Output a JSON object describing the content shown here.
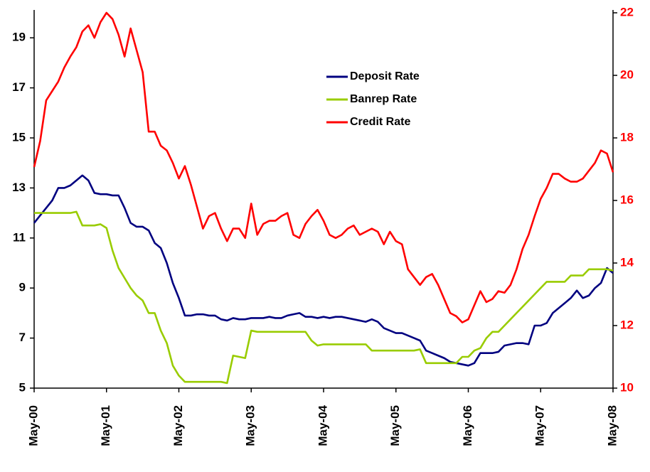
{
  "chart_data": {
    "type": "line",
    "categories": [
      "May-00",
      null,
      null,
      null,
      null,
      null,
      null,
      null,
      null,
      null,
      null,
      null,
      "May-01",
      null,
      null,
      null,
      null,
      null,
      null,
      null,
      null,
      null,
      null,
      null,
      "May-02",
      null,
      null,
      null,
      null,
      null,
      null,
      null,
      null,
      null,
      null,
      null,
      "May-03",
      null,
      null,
      null,
      null,
      null,
      null,
      null,
      null,
      null,
      null,
      null,
      "May-04",
      null,
      null,
      null,
      null,
      null,
      null,
      null,
      null,
      null,
      null,
      null,
      "May-05",
      null,
      null,
      null,
      null,
      null,
      null,
      null,
      null,
      null,
      null,
      null,
      "May-06",
      null,
      null,
      null,
      null,
      null,
      null,
      null,
      null,
      null,
      null,
      null,
      "May-07",
      null,
      null,
      null,
      null,
      null,
      null,
      null,
      null,
      null,
      null,
      null,
      "May-08"
    ],
    "series": [
      {
        "name": "Deposit Rate",
        "color": "#000080",
        "axis": "y",
        "values": [
          11.6,
          11.9,
          12.2,
          12.5,
          13.0,
          13.0,
          13.1,
          13.3,
          13.5,
          13.3,
          12.8,
          12.75,
          12.75,
          12.7,
          12.7,
          12.2,
          11.6,
          11.45,
          11.45,
          11.3,
          10.8,
          10.6,
          10.0,
          9.2,
          8.6,
          7.9,
          7.9,
          7.95,
          7.95,
          7.9,
          7.9,
          7.75,
          7.7,
          7.8,
          7.75,
          7.75,
          7.8,
          7.8,
          7.8,
          7.85,
          7.8,
          7.8,
          7.9,
          7.95,
          8.0,
          7.85,
          7.85,
          7.8,
          7.85,
          7.8,
          7.85,
          7.85,
          7.8,
          7.75,
          7.7,
          7.65,
          7.75,
          7.65,
          7.4,
          7.3,
          7.2,
          7.2,
          7.1,
          7.0,
          6.9,
          6.5,
          6.4,
          6.3,
          6.2,
          6.05,
          6.0,
          5.95,
          5.9,
          6.0,
          6.4,
          6.4,
          6.4,
          6.45,
          6.7,
          6.75,
          6.8,
          6.8,
          6.75,
          7.5,
          7.5,
          7.6,
          8.0,
          8.2,
          8.4,
          8.6,
          8.9,
          8.6,
          8.7,
          9.0,
          9.2,
          9.8,
          9.6
        ]
      },
      {
        "name": "Banrep Rate",
        "color": "#99cc00",
        "axis": "y",
        "values": [
          12,
          12,
          12,
          12,
          12,
          12,
          12,
          12.05,
          11.5,
          11.5,
          11.5,
          11.55,
          11.4,
          10.5,
          9.8,
          9.4,
          9.0,
          8.7,
          8.5,
          8.0,
          8.0,
          7.3,
          6.8,
          5.9,
          5.5,
          5.25,
          5.25,
          5.25,
          5.25,
          5.25,
          5.25,
          5.25,
          5.2,
          6.3,
          6.25,
          6.2,
          7.3,
          7.25,
          7.25,
          7.25,
          7.25,
          7.25,
          7.25,
          7.25,
          7.25,
          7.25,
          6.9,
          6.7,
          6.75,
          6.75,
          6.75,
          6.75,
          6.75,
          6.75,
          6.75,
          6.75,
          6.5,
          6.5,
          6.5,
          6.5,
          6.5,
          6.5,
          6.5,
          6.5,
          6.55,
          6.0,
          6.0,
          6.0,
          6.0,
          6.0,
          6.0,
          6.25,
          6.25,
          6.5,
          6.6,
          7.0,
          7.25,
          7.25,
          7.5,
          7.75,
          8.0,
          8.25,
          8.5,
          8.75,
          9.0,
          9.25,
          9.25,
          9.25,
          9.25,
          9.5,
          9.5,
          9.5,
          9.75,
          9.75,
          9.75,
          9.75,
          9.7
        ]
      },
      {
        "name": "Credit Rate",
        "color": "#ff0000",
        "axis": "y2",
        "values": [
          17.07,
          17.9,
          19.2,
          19.5,
          19.8,
          20.25,
          20.6,
          20.9,
          21.4,
          21.6,
          21.2,
          21.7,
          22.0,
          21.8,
          21.3,
          20.6,
          21.5,
          20.8,
          20.1,
          18.2,
          18.2,
          17.75,
          17.6,
          17.2,
          16.7,
          17.1,
          16.5,
          15.8,
          15.1,
          15.5,
          15.6,
          15.1,
          14.7,
          15.1,
          15.1,
          14.8,
          15.9,
          14.9,
          15.25,
          15.35,
          15.35,
          15.5,
          15.6,
          14.9,
          14.8,
          15.25,
          15.5,
          15.7,
          15.35,
          14.9,
          14.8,
          14.9,
          15.1,
          15.2,
          14.9,
          15.0,
          15.1,
          15.0,
          14.6,
          15.0,
          14.7,
          14.6,
          13.8,
          13.55,
          13.3,
          13.55,
          13.65,
          13.3,
          12.85,
          12.4,
          12.3,
          12.1,
          12.2,
          12.65,
          13.1,
          12.75,
          12.85,
          13.1,
          13.05,
          13.3,
          13.8,
          14.45,
          14.9,
          15.5,
          16.05,
          16.4,
          16.85,
          16.85,
          16.7,
          16.6,
          16.6,
          16.7,
          16.95,
          17.2,
          17.6,
          17.5,
          16.9
        ]
      }
    ],
    "ylim": [
      5,
      20
    ],
    "yticks": [
      5,
      7,
      9,
      11,
      13,
      15,
      17,
      19
    ],
    "y2lim": [
      10,
      22
    ],
    "y2ticks": [
      10,
      12,
      14,
      16,
      18,
      20,
      22
    ],
    "y2_color": "#ff0000",
    "grid": false
  }
}
